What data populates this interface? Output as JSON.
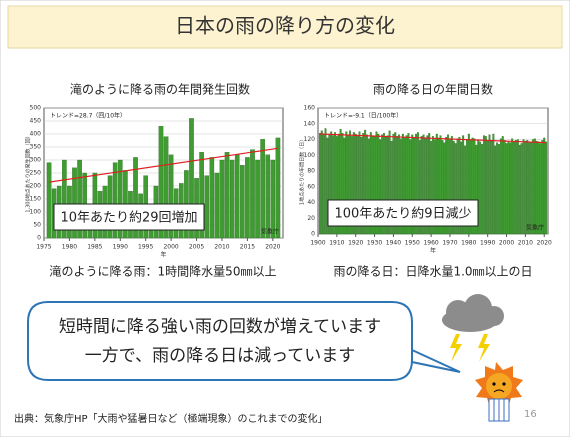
{
  "slide_title": "日本の雨の降り方の変化",
  "captions": [
    "滝のように降る雨：1時間降水量50㎜以上",
    "雨の降る日：日降水量1.0㎜以上の日"
  ],
  "callout": [
    "短時間に降る強い雨の回数が増えています",
    "一方で、雨の降る日は減っています"
  ],
  "source": "出典：気象庁HP「大雨や猛暑日など（極端現象）のこれまでの変化」",
  "page_number": 16,
  "chart_data": [
    {
      "type": "bar",
      "title": "滝のように降る雨の年間発生回数",
      "y_label": "1,300地点あたりの発生回数（回）",
      "x_label": "年",
      "trend_label": "トレンド=28.7（回/10年）",
      "annotation": "10年あたり約29回増加",
      "credit": "気象庁",
      "color": "#3f9b32",
      "x": [
        1976,
        1977,
        1978,
        1979,
        1980,
        1981,
        1982,
        1983,
        1984,
        1985,
        1986,
        1987,
        1988,
        1989,
        1990,
        1991,
        1992,
        1993,
        1994,
        1995,
        1996,
        1997,
        1998,
        1999,
        2000,
        2001,
        2002,
        2003,
        2004,
        2005,
        2006,
        2007,
        2008,
        2009,
        2010,
        2011,
        2012,
        2013,
        2014,
        2015,
        2016,
        2017,
        2018,
        2019,
        2020,
        2021
      ],
      "values": [
        290,
        190,
        200,
        300,
        200,
        270,
        300,
        250,
        110,
        250,
        180,
        200,
        240,
        290,
        300,
        260,
        180,
        310,
        170,
        240,
        120,
        200,
        430,
        390,
        320,
        190,
        210,
        260,
        460,
        230,
        330,
        240,
        310,
        250,
        300,
        330,
        300,
        320,
        280,
        310,
        340,
        300,
        380,
        320,
        300,
        385
      ],
      "trend": {
        "color": "#e02020",
        "x": [
          1976,
          2021
        ],
        "values": [
          215,
          345
        ]
      },
      "xlim": [
        1975,
        2022
      ],
      "ylim": [
        0,
        500
      ],
      "xticks": [
        1975,
        1980,
        1985,
        1990,
        1995,
        2000,
        2005,
        2010,
        2015,
        2020
      ],
      "yticks": [
        0,
        50,
        100,
        150,
        200,
        250,
        300,
        350,
        400,
        450,
        500
      ],
      "grid": true
    },
    {
      "type": "bar",
      "title": "雨の降る日の年間日数",
      "y_label": "1地点あたりの年間日数（日）",
      "x_label": "年",
      "trend_label": "トレンド=-9.1（日/100年）",
      "annotation": "100年あたり約9日減少",
      "credit": "気象庁",
      "color": "#3f9b32",
      "x": [
        1901,
        1902,
        1903,
        1904,
        1905,
        1906,
        1907,
        1908,
        1909,
        1910,
        1911,
        1912,
        1913,
        1914,
        1915,
        1916,
        1917,
        1918,
        1919,
        1920,
        1921,
        1922,
        1923,
        1924,
        1925,
        1926,
        1927,
        1928,
        1929,
        1930,
        1931,
        1932,
        1933,
        1934,
        1935,
        1936,
        1937,
        1938,
        1939,
        1940,
        1941,
        1942,
        1943,
        1944,
        1945,
        1946,
        1947,
        1948,
        1949,
        1950,
        1951,
        1952,
        1953,
        1954,
        1955,
        1956,
        1957,
        1958,
        1959,
        1960,
        1961,
        1962,
        1963,
        1964,
        1965,
        1966,
        1967,
        1968,
        1969,
        1970,
        1971,
        1972,
        1973,
        1974,
        1975,
        1976,
        1977,
        1978,
        1979,
        1980,
        1981,
        1982,
        1983,
        1984,
        1985,
        1986,
        1987,
        1988,
        1989,
        1990,
        1991,
        1992,
        1993,
        1994,
        1995,
        1996,
        1997,
        1998,
        1999,
        2000,
        2001,
        2002,
        2003,
        2004,
        2005,
        2006,
        2007,
        2008,
        2009,
        2010,
        2011,
        2012,
        2013,
        2014,
        2015,
        2016,
        2017,
        2018,
        2019,
        2020,
        2021
      ],
      "values": [
        128,
        131,
        126,
        134,
        122,
        127,
        130,
        125,
        129,
        124,
        127,
        133,
        128,
        122,
        130,
        126,
        131,
        124,
        129,
        127,
        125,
        130,
        123,
        128,
        132,
        126,
        121,
        129,
        125,
        124,
        130,
        127,
        120,
        126,
        128,
        123,
        125,
        131,
        118,
        127,
        129,
        124,
        126,
        121,
        127,
        122,
        125,
        128,
        120,
        126,
        123,
        127,
        129,
        119,
        124,
        126,
        121,
        125,
        128,
        118,
        124,
        120,
        127,
        122,
        125,
        119,
        116,
        123,
        126,
        121,
        124,
        118,
        115,
        121,
        123,
        117,
        125,
        112,
        120,
        127,
        119,
        122,
        121,
        113,
        120,
        117,
        114,
        125,
        124,
        118,
        126,
        119,
        127,
        112,
        116,
        114,
        121,
        124,
        119,
        115,
        117,
        116,
        121,
        117,
        119,
        120,
        113,
        115,
        120,
        118,
        119,
        117,
        116,
        120,
        121,
        118,
        117,
        115,
        119,
        122,
        117
      ],
      "trend": {
        "color": "#e02020",
        "x": [
          1901,
          2021
        ],
        "values": [
          127,
          116
        ]
      },
      "xlim": [
        1900,
        2022
      ],
      "ylim": [
        0,
        160
      ],
      "xticks": [
        1900,
        1910,
        1920,
        1930,
        1940,
        1950,
        1960,
        1970,
        1980,
        1990,
        2000,
        2010,
        2020
      ],
      "yticks": [
        0,
        20,
        40,
        60,
        80,
        100,
        120,
        140,
        160
      ],
      "grid": true
    }
  ]
}
